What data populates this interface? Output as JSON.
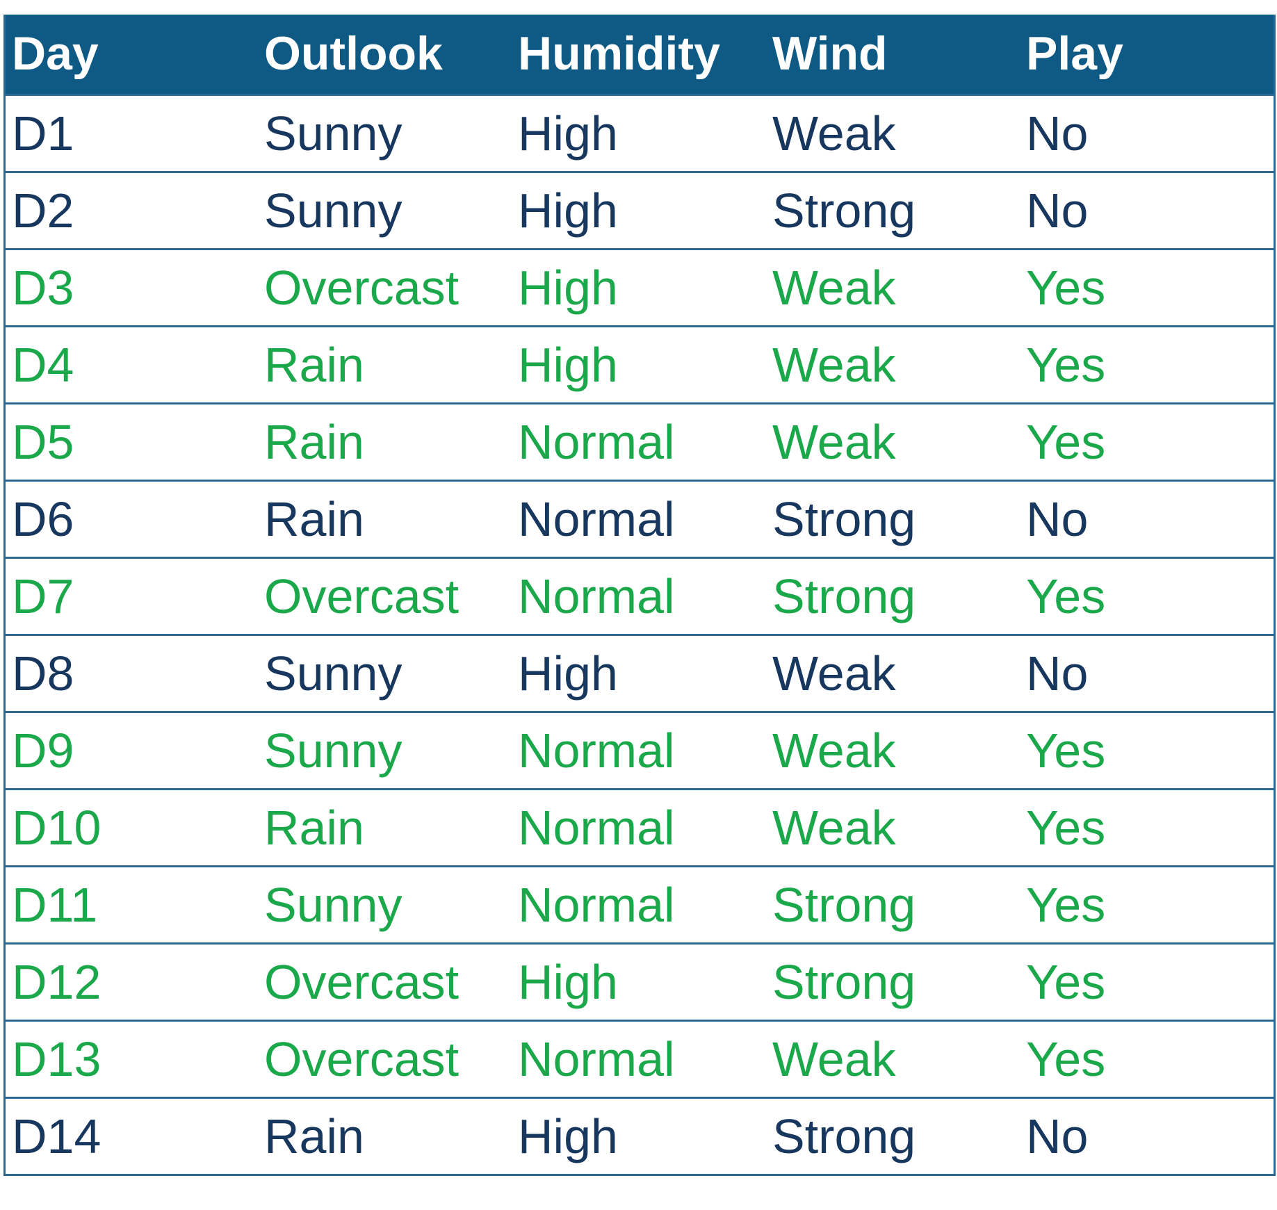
{
  "table": {
    "header": [
      "Day",
      "Outlook",
      "Humidity",
      "Wind",
      "Play"
    ],
    "rows": [
      [
        "D1",
        "Sunny",
        "High",
        "Weak",
        "No"
      ],
      [
        "D2",
        "Sunny",
        "High",
        "Strong",
        "No"
      ],
      [
        "D3",
        "Overcast",
        "High",
        "Weak",
        "Yes"
      ],
      [
        "D4",
        "Rain",
        "High",
        "Weak",
        "Yes"
      ],
      [
        "D5",
        "Rain",
        "Normal",
        "Weak",
        "Yes"
      ],
      [
        "D6",
        "Rain",
        "Normal",
        "Strong",
        "No"
      ],
      [
        "D7",
        "Overcast",
        "Normal",
        "Strong",
        "Yes"
      ],
      [
        "D8",
        "Sunny",
        "High",
        "Weak",
        "No"
      ],
      [
        "D9",
        "Sunny",
        "Normal",
        "Weak",
        "Yes"
      ],
      [
        "D10",
        "Rain",
        "Normal",
        "Weak",
        "Yes"
      ],
      [
        "D11",
        "Sunny",
        "Normal",
        "Strong",
        "Yes"
      ],
      [
        "D12",
        "Overcast",
        "High",
        "Strong",
        "Yes"
      ],
      [
        "D13",
        "Overcast",
        "Normal",
        "Weak",
        "Yes"
      ],
      [
        "D14",
        "Rain",
        "High",
        "Strong",
        "No"
      ]
    ],
    "row_colors": [
      "#17375e",
      "#17375e",
      "#1aa84a",
      "#1aa84a",
      "#1aa84a",
      "#17375e",
      "#1aa84a",
      "#17375e",
      "#1aa84a",
      "#1aa84a",
      "#1aa84a",
      "#1aa84a",
      "#1aa84a",
      "#17375e"
    ],
    "header_color": "#0e5a85"
  }
}
